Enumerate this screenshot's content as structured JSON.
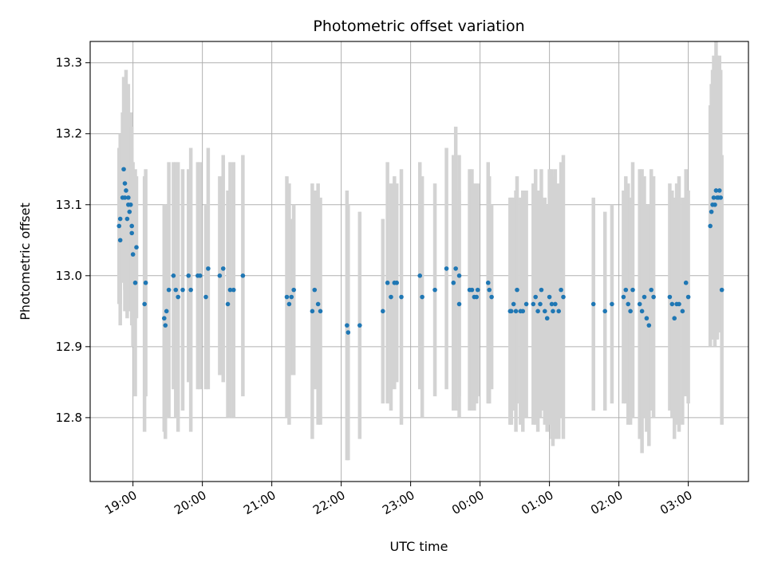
{
  "chart_data": {
    "type": "scatter",
    "title": "Photometric offset variation",
    "xlabel": "UTC time",
    "ylabel": "Photometric offset",
    "x_unit": "UTC time (HH:MM)",
    "xlim": [
      "18:23",
      "03:52"
    ],
    "ylim": [
      12.71,
      13.33
    ],
    "xticks": [
      "19:00",
      "20:00",
      "21:00",
      "22:00",
      "23:00",
      "00:00",
      "01:00",
      "02:00",
      "03:00"
    ],
    "yticks": [
      "12.8",
      "12.9",
      "13.0",
      "13.1",
      "13.2",
      "13.3"
    ],
    "grid": true,
    "legend": "none",
    "colors": {
      "point": "#1f77b4",
      "errorbar": "#d3d3d3",
      "grid": "#b0b0b0"
    },
    "points": [
      {
        "x": "18:48",
        "y": 13.07,
        "err": 0.11
      },
      {
        "x": "18:49",
        "y": 13.08,
        "err": 0.12
      },
      {
        "x": "18:49",
        "y": 13.05,
        "err": 0.12
      },
      {
        "x": "18:51",
        "y": 13.11,
        "err": 0.12
      },
      {
        "x": "18:52",
        "y": 13.15,
        "err": 0.13
      },
      {
        "x": "18:53",
        "y": 13.11,
        "err": 0.16
      },
      {
        "x": "18:53",
        "y": 13.13,
        "err": 0.15
      },
      {
        "x": "18:54",
        "y": 13.12,
        "err": 0.17
      },
      {
        "x": "18:55",
        "y": 13.08,
        "err": 0.14
      },
      {
        "x": "18:56",
        "y": 13.11,
        "err": 0.16
      },
      {
        "x": "18:56",
        "y": 13.1,
        "err": 0.15
      },
      {
        "x": "18:57",
        "y": 13.09,
        "err": 0.13
      },
      {
        "x": "18:58",
        "y": 13.1,
        "err": 0.13
      },
      {
        "x": "18:59",
        "y": 13.07,
        "err": 0.14
      },
      {
        "x": "18:59",
        "y": 13.06,
        "err": 0.12
      },
      {
        "x": "19:00",
        "y": 13.03,
        "err": 0.13
      },
      {
        "x": "19:02",
        "y": 12.99,
        "err": 0.16
      },
      {
        "x": "19:03",
        "y": 13.04,
        "err": 0.1
      },
      {
        "x": "19:10",
        "y": 12.96,
        "err": 0.18
      },
      {
        "x": "19:11",
        "y": 12.99,
        "err": 0.16
      },
      {
        "x": "19:27",
        "y": 12.94,
        "err": 0.16
      },
      {
        "x": "19:28",
        "y": 12.93,
        "err": 0.16
      },
      {
        "x": "19:29",
        "y": 12.95,
        "err": 0.15
      },
      {
        "x": "19:31",
        "y": 12.98,
        "err": 0.18
      },
      {
        "x": "19:35",
        "y": 13.0,
        "err": 0.16
      },
      {
        "x": "19:37",
        "y": 12.98,
        "err": 0.18
      },
      {
        "x": "19:39",
        "y": 12.97,
        "err": 0.19
      },
      {
        "x": "19:43",
        "y": 12.98,
        "err": 0.17
      },
      {
        "x": "19:48",
        "y": 13.0,
        "err": 0.15
      },
      {
        "x": "19:50",
        "y": 12.98,
        "err": 0.2
      },
      {
        "x": "19:56",
        "y": 13.0,
        "err": 0.16
      },
      {
        "x": "19:58",
        "y": 13.0,
        "err": 0.16
      },
      {
        "x": "20:03",
        "y": 12.97,
        "err": 0.13
      },
      {
        "x": "20:05",
        "y": 13.01,
        "err": 0.17
      },
      {
        "x": "20:15",
        "y": 13.0,
        "err": 0.14
      },
      {
        "x": "20:18",
        "y": 13.01,
        "err": 0.16
      },
      {
        "x": "20:22",
        "y": 12.96,
        "err": 0.16
      },
      {
        "x": "20:24",
        "y": 12.98,
        "err": 0.18
      },
      {
        "x": "20:27",
        "y": 12.98,
        "err": 0.18
      },
      {
        "x": "20:35",
        "y": 13.0,
        "err": 0.17
      },
      {
        "x": "21:13",
        "y": 12.97,
        "err": 0.17
      },
      {
        "x": "21:15",
        "y": 12.96,
        "err": 0.17
      },
      {
        "x": "21:17",
        "y": 12.97,
        "err": 0.11
      },
      {
        "x": "21:19",
        "y": 12.98,
        "err": 0.12
      },
      {
        "x": "21:35",
        "y": 12.95,
        "err": 0.18
      },
      {
        "x": "21:37",
        "y": 12.98,
        "err": 0.14
      },
      {
        "x": "21:40",
        "y": 12.96,
        "err": 0.17
      },
      {
        "x": "21:42",
        "y": 12.95,
        "err": 0.16
      },
      {
        "x": "22:05",
        "y": 12.93,
        "err": 0.19
      },
      {
        "x": "22:06",
        "y": 12.92,
        "err": 0.18
      },
      {
        "x": "22:16",
        "y": 12.93,
        "err": 0.16
      },
      {
        "x": "22:36",
        "y": 12.95,
        "err": 0.13
      },
      {
        "x": "22:40",
        "y": 12.99,
        "err": 0.17
      },
      {
        "x": "22:43",
        "y": 12.97,
        "err": 0.16
      },
      {
        "x": "22:46",
        "y": 12.99,
        "err": 0.15
      },
      {
        "x": "22:48",
        "y": 12.99,
        "err": 0.14
      },
      {
        "x": "22:52",
        "y": 12.97,
        "err": 0.18
      },
      {
        "x": "23:08",
        "y": 13.0,
        "err": 0.16
      },
      {
        "x": "23:10",
        "y": 12.97,
        "err": 0.17
      },
      {
        "x": "23:21",
        "y": 12.98,
        "err": 0.15
      },
      {
        "x": "23:31",
        "y": 13.01,
        "err": 0.17
      },
      {
        "x": "23:37",
        "y": 12.99,
        "err": 0.18
      },
      {
        "x": "23:39",
        "y": 13.01,
        "err": 0.2
      },
      {
        "x": "23:42",
        "y": 13.0,
        "err": 0.17
      },
      {
        "x": "23:42",
        "y": 12.96,
        "err": 0.16
      },
      {
        "x": "23:51",
        "y": 12.98,
        "err": 0.17
      },
      {
        "x": "23:53",
        "y": 12.98,
        "err": 0.17
      },
      {
        "x": "23:55",
        "y": 12.97,
        "err": 0.16
      },
      {
        "x": "23:57",
        "y": 12.97,
        "err": 0.15
      },
      {
        "x": "23:58",
        "y": 12.98,
        "err": 0.15
      },
      {
        "x": "00:07",
        "y": 12.99,
        "err": 0.17
      },
      {
        "x": "00:08",
        "y": 12.98,
        "err": 0.16
      },
      {
        "x": "00:10",
        "y": 12.97,
        "err": 0.13
      },
      {
        "x": "00:26",
        "y": 12.95,
        "err": 0.16
      },
      {
        "x": "00:27",
        "y": 12.95,
        "err": 0.16
      },
      {
        "x": "00:29",
        "y": 12.96,
        "err": 0.15
      },
      {
        "x": "00:31",
        "y": 12.95,
        "err": 0.17
      },
      {
        "x": "00:32",
        "y": 12.98,
        "err": 0.16
      },
      {
        "x": "00:35",
        "y": 12.95,
        "err": 0.16
      },
      {
        "x": "00:37",
        "y": 12.95,
        "err": 0.17
      },
      {
        "x": "00:40",
        "y": 12.96,
        "err": 0.16
      },
      {
        "x": "00:46",
        "y": 12.96,
        "err": 0.17
      },
      {
        "x": "00:48",
        "y": 12.97,
        "err": 0.18
      },
      {
        "x": "00:50",
        "y": 12.95,
        "err": 0.17
      },
      {
        "x": "00:52",
        "y": 12.96,
        "err": 0.16
      },
      {
        "x": "00:53",
        "y": 12.98,
        "err": 0.17
      },
      {
        "x": "00:56",
        "y": 12.95,
        "err": 0.16
      },
      {
        "x": "00:58",
        "y": 12.94,
        "err": 0.16
      },
      {
        "x": "01:00",
        "y": 12.97,
        "err": 0.18
      },
      {
        "x": "01:02",
        "y": 12.96,
        "err": 0.19
      },
      {
        "x": "01:03",
        "y": 12.95,
        "err": 0.19
      },
      {
        "x": "01:05",
        "y": 12.96,
        "err": 0.19
      },
      {
        "x": "01:08",
        "y": 12.95,
        "err": 0.18
      },
      {
        "x": "01:10",
        "y": 12.98,
        "err": 0.18
      },
      {
        "x": "01:12",
        "y": 12.97,
        "err": 0.2
      },
      {
        "x": "01:38",
        "y": 12.96,
        "err": 0.15
      },
      {
        "x": "01:48",
        "y": 12.95,
        "err": 0.14
      },
      {
        "x": "01:54",
        "y": 12.96,
        "err": 0.14
      },
      {
        "x": "02:04",
        "y": 12.97,
        "err": 0.15
      },
      {
        "x": "02:06",
        "y": 12.98,
        "err": 0.16
      },
      {
        "x": "02:08",
        "y": 12.96,
        "err": 0.17
      },
      {
        "x": "02:10",
        "y": 12.95,
        "err": 0.16
      },
      {
        "x": "02:12",
        "y": 12.98,
        "err": 0.18
      },
      {
        "x": "02:18",
        "y": 12.96,
        "err": 0.19
      },
      {
        "x": "02:20",
        "y": 12.95,
        "err": 0.2
      },
      {
        "x": "02:22",
        "y": 12.97,
        "err": 0.17
      },
      {
        "x": "02:24",
        "y": 12.94,
        "err": 0.16
      },
      {
        "x": "02:26",
        "y": 12.93,
        "err": 0.17
      },
      {
        "x": "02:28",
        "y": 12.98,
        "err": 0.17
      },
      {
        "x": "02:30",
        "y": 12.97,
        "err": 0.17
      },
      {
        "x": "02:44",
        "y": 12.97,
        "err": 0.16
      },
      {
        "x": "02:46",
        "y": 12.96,
        "err": 0.16
      },
      {
        "x": "02:48",
        "y": 12.94,
        "err": 0.17
      },
      {
        "x": "02:50",
        "y": 12.96,
        "err": 0.17
      },
      {
        "x": "02:52",
        "y": 12.96,
        "err": 0.18
      },
      {
        "x": "02:55",
        "y": 12.95,
        "err": 0.16
      },
      {
        "x": "02:58",
        "y": 12.99,
        "err": 0.16
      },
      {
        "x": "03:00",
        "y": 12.97,
        "err": 0.15
      },
      {
        "x": "03:19",
        "y": 13.07,
        "err": 0.17
      },
      {
        "x": "03:20",
        "y": 13.09,
        "err": 0.18
      },
      {
        "x": "03:21",
        "y": 13.1,
        "err": 0.19
      },
      {
        "x": "03:22",
        "y": 13.11,
        "err": 0.2
      },
      {
        "x": "03:23",
        "y": 13.1,
        "err": 0.2
      },
      {
        "x": "03:24",
        "y": 13.12,
        "err": 0.21
      },
      {
        "x": "03:25",
        "y": 13.11,
        "err": 0.2
      },
      {
        "x": "03:26",
        "y": 13.11,
        "err": 0.19
      },
      {
        "x": "03:27",
        "y": 13.12,
        "err": 0.19
      },
      {
        "x": "03:28",
        "y": 13.11,
        "err": 0.18
      },
      {
        "x": "03:29",
        "y": 12.98,
        "err": 0.19
      }
    ]
  }
}
